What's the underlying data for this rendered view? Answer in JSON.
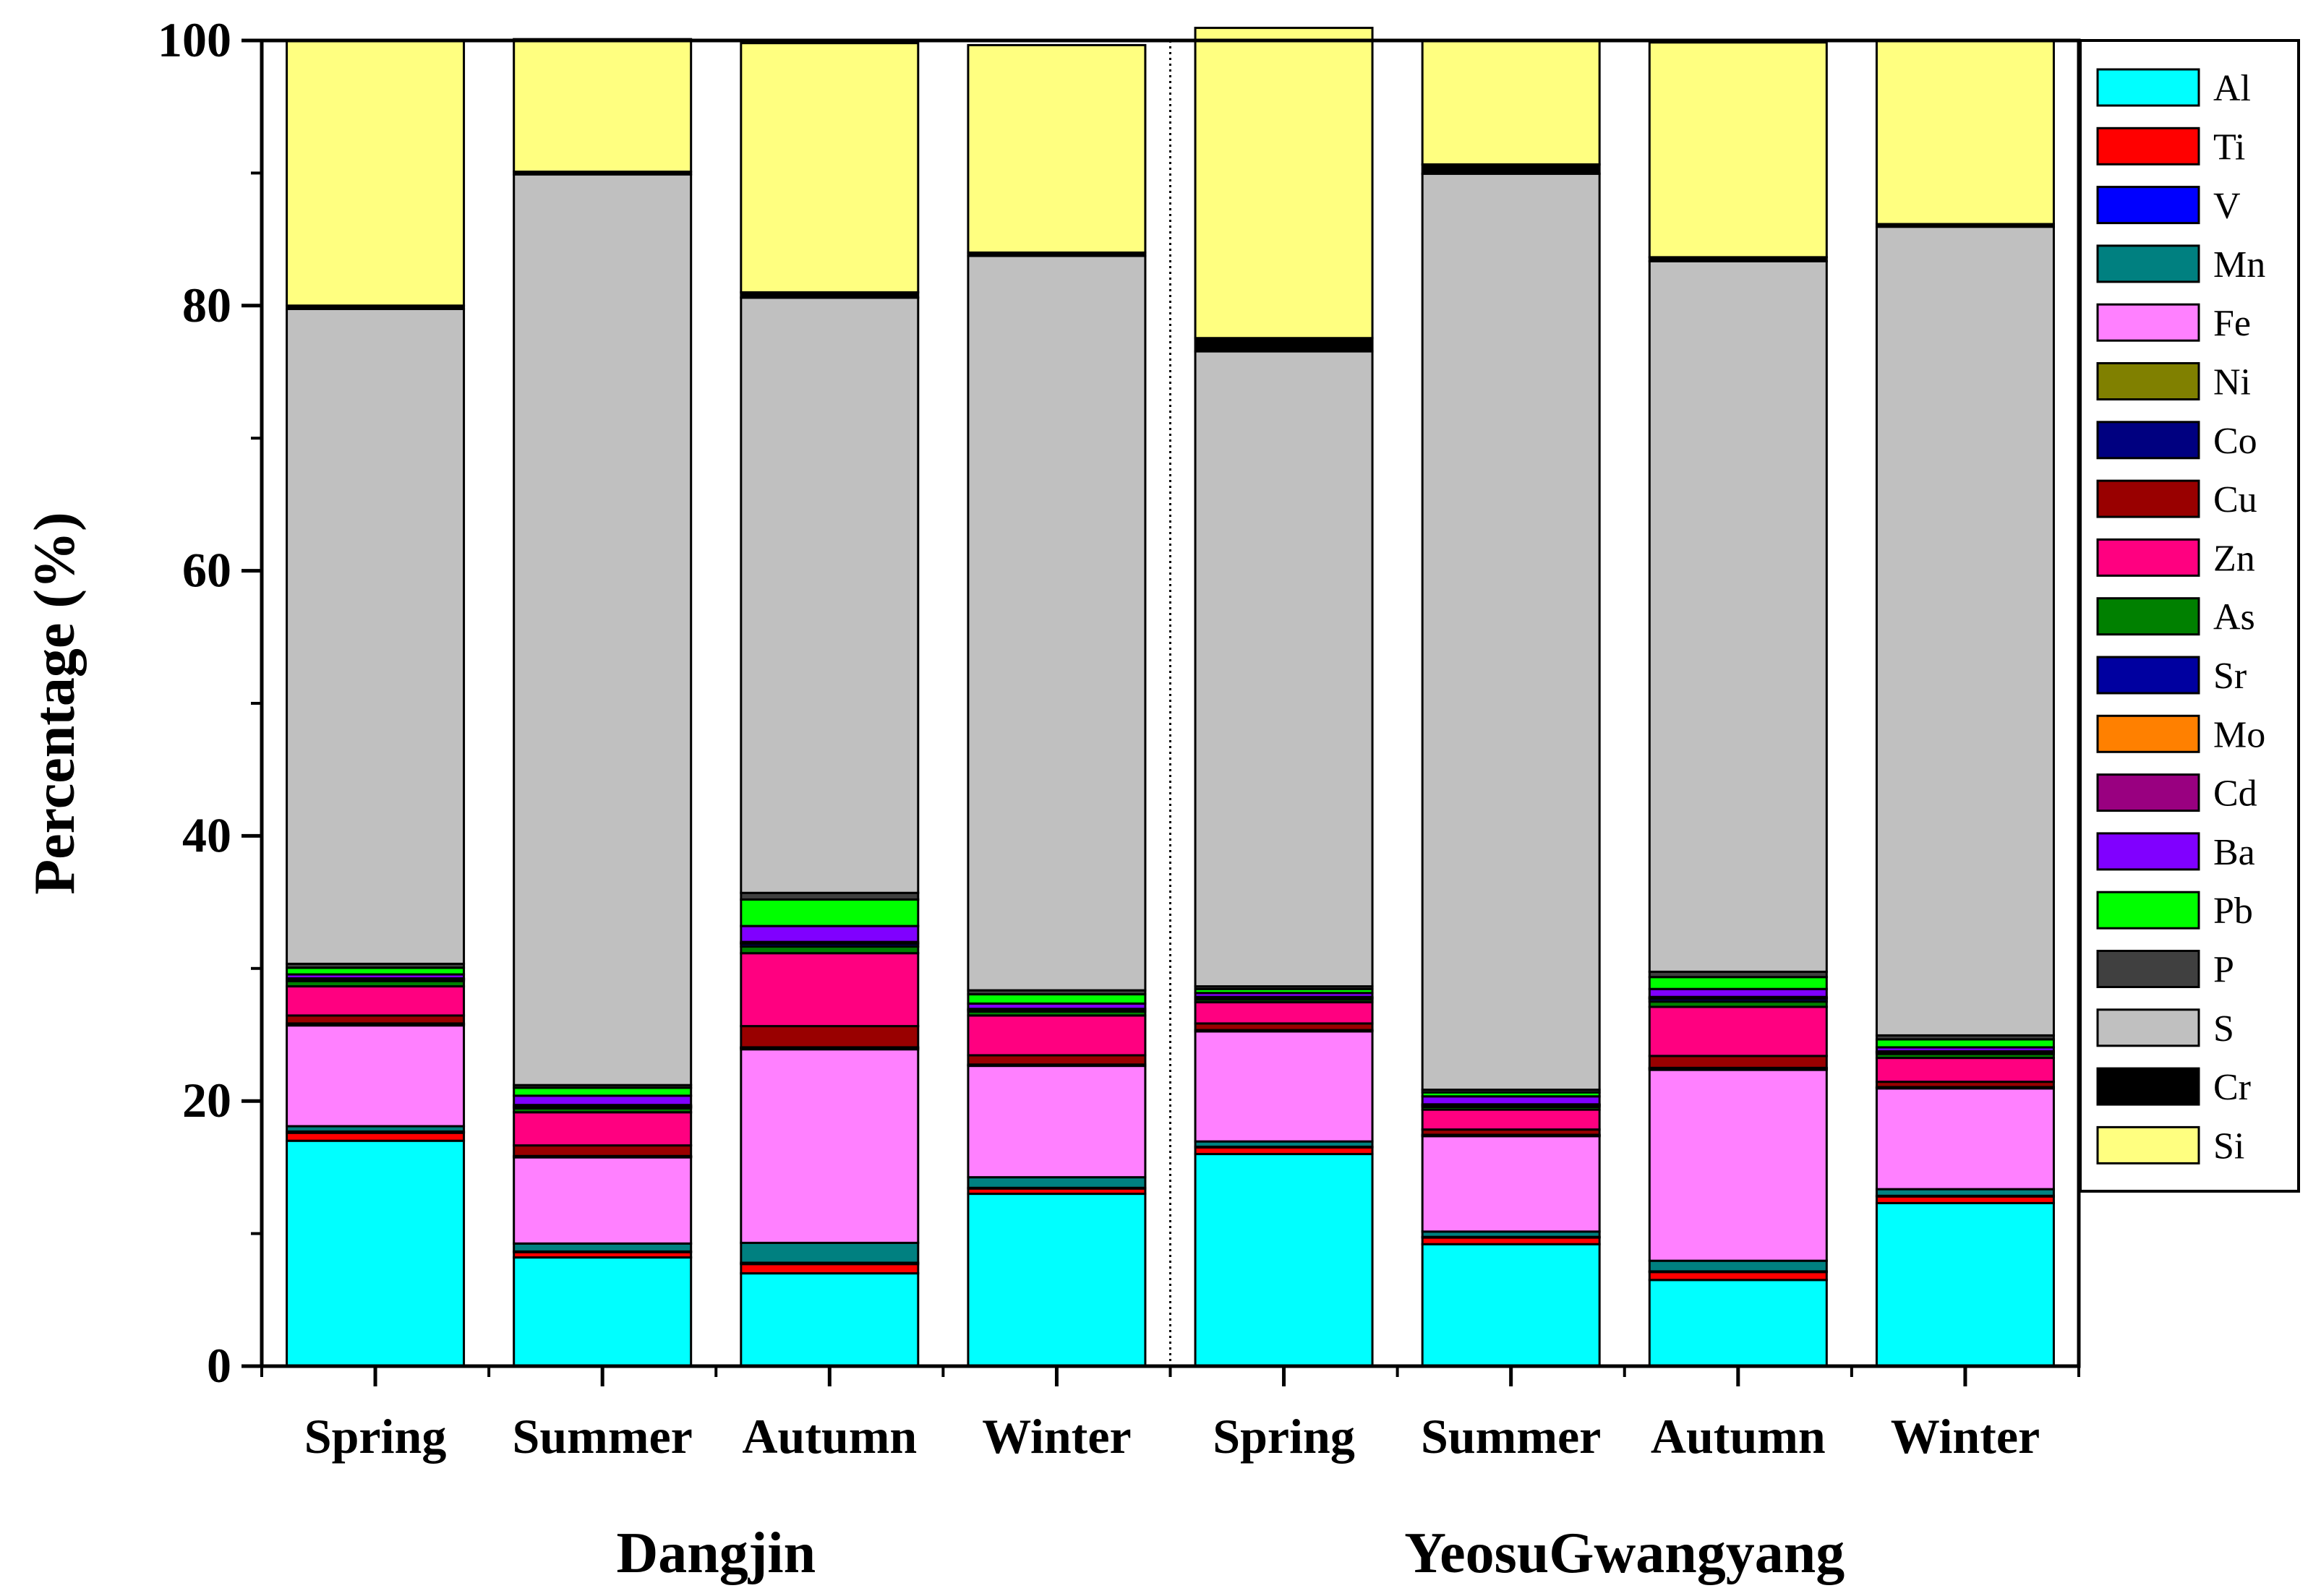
{
  "chart_data": {
    "type": "bar",
    "stacked": true,
    "title": "",
    "ylabel": "Percentage (%)",
    "xlabel": "",
    "ylim": [
      0,
      100
    ],
    "yticks": [
      0,
      20,
      40,
      60,
      80,
      100
    ],
    "yticklabels": [
      "0",
      "20",
      "40",
      "60",
      "80",
      "100"
    ],
    "legend_position": "right",
    "groups": [
      {
        "label": "Dangjin",
        "categories": [
          "Spring",
          "Summer",
          "Autumn",
          "Winter"
        ]
      },
      {
        "label": "YeosuGwangyang",
        "categories": [
          "Spring",
          "Summer",
          "Autumn",
          "Winter"
        ]
      }
    ],
    "categories": [
      "Spring",
      "Summer",
      "Autumn",
      "Winter",
      "Spring",
      "Summer",
      "Autumn",
      "Winter"
    ],
    "series": [
      {
        "name": "Al",
        "color": "#00FFFF",
        "values": [
          17.0,
          8.2,
          7.0,
          13.0,
          16.0,
          9.2,
          6.5,
          12.3
        ]
      },
      {
        "name": "Ti",
        "color": "#FF0000",
        "values": [
          0.6,
          0.4,
          0.7,
          0.4,
          0.5,
          0.5,
          0.6,
          0.5
        ]
      },
      {
        "name": "V",
        "color": "#0000FF",
        "values": [
          0.1,
          0.05,
          0.1,
          0.05,
          0.05,
          0.05,
          0.05,
          0.05
        ]
      },
      {
        "name": "Mn",
        "color": "#008080",
        "values": [
          0.4,
          0.6,
          1.5,
          0.8,
          0.4,
          0.4,
          0.8,
          0.5
        ]
      },
      {
        "name": "Fe",
        "color": "#FF80FF",
        "values": [
          7.6,
          6.5,
          14.6,
          8.4,
          8.3,
          7.2,
          14.4,
          7.6
        ]
      },
      {
        "name": "Ni",
        "color": "#808000",
        "values": [
          0.1,
          0.05,
          0.1,
          0.05,
          0.05,
          0.05,
          0.1,
          0.05
        ]
      },
      {
        "name": "Co",
        "color": "#000080",
        "values": [
          0.05,
          0.05,
          0.05,
          0.05,
          0.05,
          0.05,
          0.05,
          0.05
        ]
      },
      {
        "name": "Cu",
        "color": "#990000",
        "values": [
          0.6,
          0.8,
          1.6,
          0.7,
          0.5,
          0.4,
          0.9,
          0.4
        ]
      },
      {
        "name": "Zn",
        "color": "#FF0080",
        "values": [
          2.2,
          2.5,
          5.5,
          3.0,
          1.6,
          1.5,
          3.7,
          1.8
        ]
      },
      {
        "name": "As",
        "color": "#008000",
        "values": [
          0.4,
          0.3,
          0.5,
          0.3,
          0.2,
          0.2,
          0.4,
          0.3
        ]
      },
      {
        "name": "Sr",
        "color": "#0000A0",
        "values": [
          0.1,
          0.1,
          0.2,
          0.1,
          0.1,
          0.1,
          0.2,
          0.1
        ]
      },
      {
        "name": "Mo",
        "color": "#FF8000",
        "values": [
          0.05,
          0.05,
          0.05,
          0.05,
          0.05,
          0.05,
          0.05,
          0.05
        ]
      },
      {
        "name": "Cd",
        "color": "#990080",
        "values": [
          0.05,
          0.1,
          0.1,
          0.05,
          0.05,
          0.05,
          0.1,
          0.05
        ]
      },
      {
        "name": "Ba",
        "color": "#8000FF",
        "values": [
          0.3,
          0.7,
          1.2,
          0.4,
          0.3,
          0.6,
          0.6,
          0.3
        ]
      },
      {
        "name": "Pb",
        "color": "#00FF00",
        "values": [
          0.5,
          0.6,
          2.0,
          0.7,
          0.3,
          0.3,
          0.9,
          0.6
        ]
      },
      {
        "name": "P",
        "color": "#404040",
        "values": [
          0.3,
          0.2,
          0.5,
          0.3,
          0.2,
          0.2,
          0.4,
          0.3
        ]
      },
      {
        "name": "S",
        "color": "#C0C0C0",
        "values": [
          49.4,
          68.7,
          44.9,
          55.4,
          47.9,
          69.1,
          53.6,
          61.0
        ]
      },
      {
        "name": "Cr",
        "color": "#000000",
        "values": [
          0.25,
          0.2,
          0.4,
          0.25,
          1.0,
          0.7,
          0.3,
          0.2
        ]
      },
      {
        "name": "Si",
        "color": "#FFFF80",
        "values": [
          20.05,
          10.0,
          18.8,
          15.65,
          23.4,
          9.4,
          16.2,
          13.9
        ]
      }
    ]
  }
}
